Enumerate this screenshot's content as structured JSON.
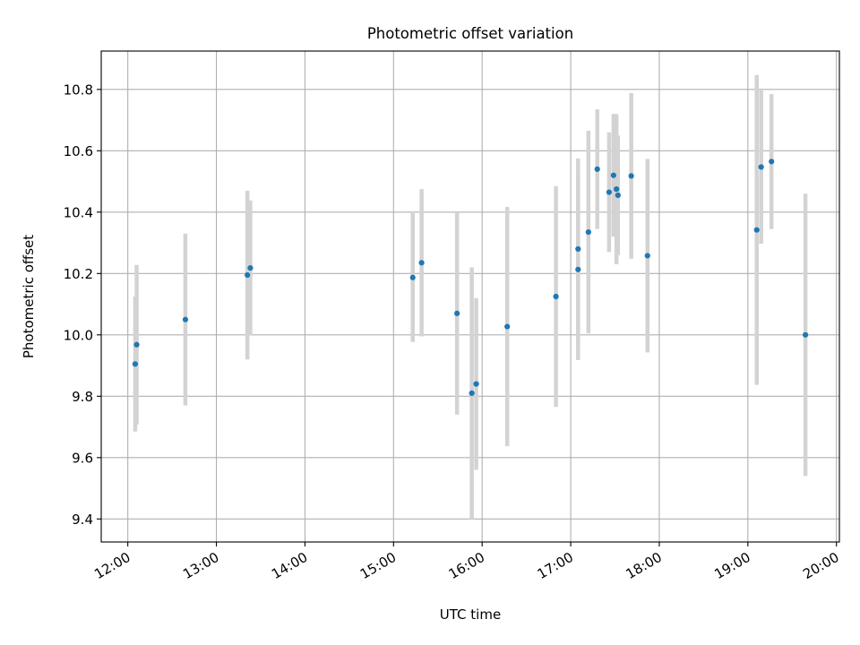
{
  "chart_data": {
    "type": "scatter",
    "title": "Photometric offset variation",
    "xlabel": "UTC time",
    "ylabel": "Photometric offset",
    "x_ticks": [
      "12:00",
      "13:00",
      "14:00",
      "15:00",
      "16:00",
      "17:00",
      "18:00",
      "19:00",
      "20:00"
    ],
    "y_ticks": [
      "9.4",
      "9.6",
      "9.8",
      "10.0",
      "10.2",
      "10.4",
      "10.6",
      "10.8"
    ],
    "xlim": [
      "11:42",
      "20:02"
    ],
    "ylim": [
      9.325,
      10.925
    ],
    "grid": true,
    "colors": {
      "points": "#1f77b4",
      "errorbars": "#d3d3d3",
      "grid": "#b0b0b0"
    },
    "series": [
      {
        "points": [
          {
            "x": "12:05",
            "y": 9.905,
            "err": 0.22
          },
          {
            "x": "12:06",
            "y": 9.968,
            "err": 0.26
          },
          {
            "x": "12:39",
            "y": 10.05,
            "err": 0.28
          },
          {
            "x": "13:21",
            "y": 10.195,
            "err": 0.275
          },
          {
            "x": "13:23",
            "y": 10.218,
            "err": 0.22
          },
          {
            "x": "15:13",
            "y": 10.187,
            "err": 0.21
          },
          {
            "x": "15:19",
            "y": 10.235,
            "err": 0.24
          },
          {
            "x": "15:43",
            "y": 10.07,
            "err": 0.33
          },
          {
            "x": "15:53",
            "y": 9.81,
            "err": 0.41
          },
          {
            "x": "15:56",
            "y": 9.84,
            "err": 0.28
          },
          {
            "x": "16:17",
            "y": 10.027,
            "err": 0.39
          },
          {
            "x": "16:50",
            "y": 10.125,
            "err": 0.36
          },
          {
            "x": "17:05",
            "y": 10.213,
            "err": 0.295
          },
          {
            "x": "17:05",
            "y": 10.28,
            "err": 0.295
          },
          {
            "x": "17:12",
            "y": 10.335,
            "err": 0.33
          },
          {
            "x": "17:18",
            "y": 10.54,
            "err": 0.195
          },
          {
            "x": "17:26",
            "y": 10.465,
            "err": 0.195
          },
          {
            "x": "17:29",
            "y": 10.52,
            "err": 0.2
          },
          {
            "x": "17:31",
            "y": 10.475,
            "err": 0.245
          },
          {
            "x": "17:32",
            "y": 10.455,
            "err": 0.195
          },
          {
            "x": "17:41",
            "y": 10.518,
            "err": 0.27
          },
          {
            "x": "17:52",
            "y": 10.258,
            "err": 0.315
          },
          {
            "x": "19:06",
            "y": 10.342,
            "err": 0.505
          },
          {
            "x": "19:09",
            "y": 10.547,
            "err": 0.25
          },
          {
            "x": "19:16",
            "y": 10.565,
            "err": 0.22
          },
          {
            "x": "19:39",
            "y": 10.0,
            "err": 0.46
          }
        ]
      }
    ]
  }
}
